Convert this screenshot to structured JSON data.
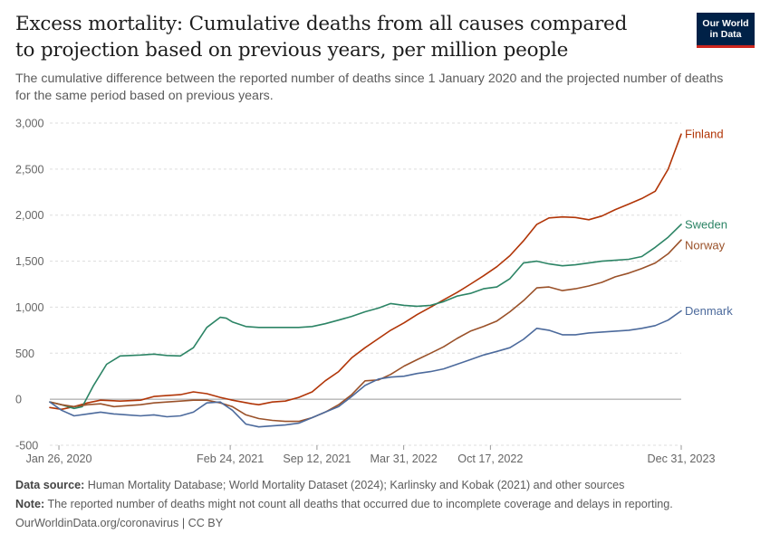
{
  "header": {
    "title": "Excess mortality: Cumulative deaths from all causes compared to projection based on previous years, per million people",
    "subtitle": "The cumulative difference between the reported number of deaths since 1 January 2020 and the projected number of deaths for the same period based on previous years."
  },
  "logo": {
    "line1": "Our World",
    "line2": "in Data"
  },
  "footer": {
    "source_label": "Data source:",
    "source_text": "Human Mortality Database; World Mortality Dataset (2024); Karlinsky and Kobak (2021) and other sources",
    "note_label": "Note:",
    "note_text": "The reported number of deaths might not count all deaths that occurred due to incomplete coverage and delays in reporting.",
    "credit": "OurWorldinData.org/coronavirus | CC BY"
  },
  "colors": {
    "Finland": "#b13507",
    "Sweden": "#2c8465",
    "Norway": "#9a5129",
    "Denmark": "#4c6a9c",
    "grid": "#dddddd",
    "zero_line": "#999999"
  },
  "chart_data": {
    "type": "line",
    "title": "Excess mortality: Cumulative deaths from all causes compared to projection based on previous years, per million people",
    "xlabel": "",
    "ylabel": "",
    "ylim": [
      -500,
      3000
    ],
    "yticks": [
      -500,
      0,
      500,
      1000,
      1500,
      2000,
      2500,
      3000
    ],
    "ytick_labels": [
      "-500",
      "0",
      "500",
      "1,000",
      "1,500",
      "2,000",
      "2,500",
      "3,000"
    ],
    "xlim": [
      "2020-01-05",
      "2023-12-31"
    ],
    "xticks": [
      "2020-01-26",
      "2021-02-24",
      "2021-09-12",
      "2022-03-31",
      "2022-10-17",
      "2023-12-31"
    ],
    "xtick_labels": [
      "Jan 26, 2020",
      "Feb 24, 2021",
      "Sep 12, 2021",
      "Mar 31, 2022",
      "Oct 17, 2022",
      "Dec 31, 2023"
    ],
    "grid": "horizontal",
    "legend": "line-end labels at right",
    "series": [
      {
        "name": "Finland",
        "points": [
          [
            "2020-01-05",
            -90
          ],
          [
            "2020-02-01",
            -110
          ],
          [
            "2020-03-01",
            -80
          ],
          [
            "2020-04-01",
            -40
          ],
          [
            "2020-05-01",
            -10
          ],
          [
            "2020-06-15",
            -20
          ],
          [
            "2020-08-01",
            -10
          ],
          [
            "2020-09-01",
            30
          ],
          [
            "2020-10-01",
            40
          ],
          [
            "2020-11-01",
            50
          ],
          [
            "2020-12-01",
            80
          ],
          [
            "2021-01-01",
            60
          ],
          [
            "2021-02-01",
            20
          ],
          [
            "2021-03-01",
            -10
          ],
          [
            "2021-04-15",
            -50
          ],
          [
            "2021-05-01",
            -60
          ],
          [
            "2021-06-01",
            -30
          ],
          [
            "2021-07-01",
            -20
          ],
          [
            "2021-08-01",
            20
          ],
          [
            "2021-09-01",
            80
          ],
          [
            "2021-10-01",
            200
          ],
          [
            "2021-11-01",
            300
          ],
          [
            "2021-12-01",
            450
          ],
          [
            "2022-01-01",
            560
          ],
          [
            "2022-02-01",
            660
          ],
          [
            "2022-03-01",
            750
          ],
          [
            "2022-04-01",
            830
          ],
          [
            "2022-05-01",
            920
          ],
          [
            "2022-06-01",
            1000
          ],
          [
            "2022-07-01",
            1080
          ],
          [
            "2022-08-01",
            1160
          ],
          [
            "2022-09-01",
            1250
          ],
          [
            "2022-10-01",
            1340
          ],
          [
            "2022-11-01",
            1440
          ],
          [
            "2022-12-01",
            1560
          ],
          [
            "2023-01-01",
            1720
          ],
          [
            "2023-02-01",
            1900
          ],
          [
            "2023-03-01",
            1970
          ],
          [
            "2023-04-01",
            1980
          ],
          [
            "2023-05-01",
            1975
          ],
          [
            "2023-06-01",
            1950
          ],
          [
            "2023-07-01",
            1990
          ],
          [
            "2023-08-01",
            2060
          ],
          [
            "2023-09-01",
            2120
          ],
          [
            "2023-10-01",
            2180
          ],
          [
            "2023-11-01",
            2260
          ],
          [
            "2023-12-01",
            2500
          ],
          [
            "2023-12-31",
            2880
          ]
        ]
      },
      {
        "name": "Sweden",
        "points": [
          [
            "2020-01-05",
            -30
          ],
          [
            "2020-02-01",
            -60
          ],
          [
            "2020-03-01",
            -100
          ],
          [
            "2020-03-20",
            -80
          ],
          [
            "2020-04-15",
            150
          ],
          [
            "2020-05-15",
            380
          ],
          [
            "2020-06-15",
            470
          ],
          [
            "2020-08-01",
            480
          ],
          [
            "2020-09-01",
            490
          ],
          [
            "2020-10-01",
            475
          ],
          [
            "2020-11-01",
            470
          ],
          [
            "2020-12-01",
            560
          ],
          [
            "2021-01-01",
            780
          ],
          [
            "2021-02-01",
            890
          ],
          [
            "2021-02-15",
            880
          ],
          [
            "2021-03-01",
            840
          ],
          [
            "2021-04-01",
            790
          ],
          [
            "2021-05-01",
            780
          ],
          [
            "2021-06-01",
            780
          ],
          [
            "2021-07-01",
            780
          ],
          [
            "2021-08-01",
            780
          ],
          [
            "2021-09-01",
            790
          ],
          [
            "2021-10-01",
            820
          ],
          [
            "2021-11-01",
            860
          ],
          [
            "2021-12-01",
            900
          ],
          [
            "2022-01-01",
            950
          ],
          [
            "2022-02-01",
            990
          ],
          [
            "2022-03-01",
            1040
          ],
          [
            "2022-04-01",
            1020
          ],
          [
            "2022-05-01",
            1010
          ],
          [
            "2022-06-01",
            1020
          ],
          [
            "2022-07-01",
            1060
          ],
          [
            "2022-08-01",
            1120
          ],
          [
            "2022-09-01",
            1150
          ],
          [
            "2022-10-01",
            1200
          ],
          [
            "2022-11-01",
            1220
          ],
          [
            "2022-12-01",
            1310
          ],
          [
            "2023-01-01",
            1480
          ],
          [
            "2023-02-01",
            1500
          ],
          [
            "2023-03-01",
            1470
          ],
          [
            "2023-04-01",
            1450
          ],
          [
            "2023-05-01",
            1460
          ],
          [
            "2023-06-01",
            1480
          ],
          [
            "2023-07-01",
            1500
          ],
          [
            "2023-08-01",
            1510
          ],
          [
            "2023-09-01",
            1520
          ],
          [
            "2023-10-01",
            1550
          ],
          [
            "2023-11-01",
            1650
          ],
          [
            "2023-12-01",
            1760
          ],
          [
            "2023-12-31",
            1900
          ]
        ]
      },
      {
        "name": "Norway",
        "points": [
          [
            "2020-01-05",
            -30
          ],
          [
            "2020-02-01",
            -60
          ],
          [
            "2020-03-01",
            -80
          ],
          [
            "2020-04-01",
            -60
          ],
          [
            "2020-05-01",
            -50
          ],
          [
            "2020-06-01",
            -80
          ],
          [
            "2020-08-01",
            -60
          ],
          [
            "2020-09-01",
            -40
          ],
          [
            "2020-10-01",
            -30
          ],
          [
            "2020-11-01",
            -20
          ],
          [
            "2020-12-01",
            -10
          ],
          [
            "2021-01-01",
            -10
          ],
          [
            "2021-02-01",
            -40
          ],
          [
            "2021-03-01",
            -80
          ],
          [
            "2021-04-01",
            -170
          ],
          [
            "2021-05-01",
            -210
          ],
          [
            "2021-06-01",
            -230
          ],
          [
            "2021-07-01",
            -240
          ],
          [
            "2021-08-01",
            -240
          ],
          [
            "2021-09-01",
            -200
          ],
          [
            "2021-10-01",
            -140
          ],
          [
            "2021-11-01",
            -60
          ],
          [
            "2021-12-01",
            50
          ],
          [
            "2022-01-01",
            200
          ],
          [
            "2022-02-01",
            210
          ],
          [
            "2022-03-01",
            270
          ],
          [
            "2022-04-01",
            360
          ],
          [
            "2022-05-01",
            430
          ],
          [
            "2022-06-01",
            500
          ],
          [
            "2022-07-01",
            570
          ],
          [
            "2022-08-01",
            660
          ],
          [
            "2022-09-01",
            740
          ],
          [
            "2022-10-01",
            790
          ],
          [
            "2022-11-01",
            850
          ],
          [
            "2022-12-01",
            950
          ],
          [
            "2023-01-01",
            1070
          ],
          [
            "2023-02-01",
            1210
          ],
          [
            "2023-03-01",
            1220
          ],
          [
            "2023-04-01",
            1180
          ],
          [
            "2023-05-01",
            1200
          ],
          [
            "2023-06-01",
            1230
          ],
          [
            "2023-07-01",
            1270
          ],
          [
            "2023-08-01",
            1330
          ],
          [
            "2023-09-01",
            1370
          ],
          [
            "2023-10-01",
            1420
          ],
          [
            "2023-11-01",
            1480
          ],
          [
            "2023-12-01",
            1580
          ],
          [
            "2023-12-31",
            1730
          ]
        ]
      },
      {
        "name": "Denmark",
        "points": [
          [
            "2020-01-05",
            -30
          ],
          [
            "2020-02-01",
            -120
          ],
          [
            "2020-03-01",
            -180
          ],
          [
            "2020-04-01",
            -160
          ],
          [
            "2020-05-01",
            -140
          ],
          [
            "2020-06-01",
            -160
          ],
          [
            "2020-07-01",
            -170
          ],
          [
            "2020-08-01",
            -180
          ],
          [
            "2020-09-01",
            -170
          ],
          [
            "2020-10-01",
            -190
          ],
          [
            "2020-11-01",
            -180
          ],
          [
            "2020-12-01",
            -140
          ],
          [
            "2021-01-01",
            -40
          ],
          [
            "2021-02-01",
            -30
          ],
          [
            "2021-03-01",
            -120
          ],
          [
            "2021-04-01",
            -270
          ],
          [
            "2021-05-01",
            -300
          ],
          [
            "2021-06-01",
            -290
          ],
          [
            "2021-07-01",
            -280
          ],
          [
            "2021-08-01",
            -260
          ],
          [
            "2021-09-01",
            -200
          ],
          [
            "2021-10-01",
            -140
          ],
          [
            "2021-11-01",
            -80
          ],
          [
            "2021-12-01",
            30
          ],
          [
            "2022-01-01",
            150
          ],
          [
            "2022-02-01",
            220
          ],
          [
            "2022-03-01",
            240
          ],
          [
            "2022-04-01",
            250
          ],
          [
            "2022-05-01",
            280
          ],
          [
            "2022-06-01",
            300
          ],
          [
            "2022-07-01",
            330
          ],
          [
            "2022-08-01",
            380
          ],
          [
            "2022-09-01",
            430
          ],
          [
            "2022-10-01",
            480
          ],
          [
            "2022-11-01",
            520
          ],
          [
            "2022-12-01",
            560
          ],
          [
            "2023-01-01",
            650
          ],
          [
            "2023-02-01",
            770
          ],
          [
            "2023-03-01",
            750
          ],
          [
            "2023-04-01",
            700
          ],
          [
            "2023-05-01",
            700
          ],
          [
            "2023-06-01",
            720
          ],
          [
            "2023-07-01",
            730
          ],
          [
            "2023-08-01",
            740
          ],
          [
            "2023-09-01",
            750
          ],
          [
            "2023-10-01",
            770
          ],
          [
            "2023-11-01",
            800
          ],
          [
            "2023-12-01",
            860
          ],
          [
            "2023-12-31",
            960
          ]
        ]
      }
    ]
  }
}
